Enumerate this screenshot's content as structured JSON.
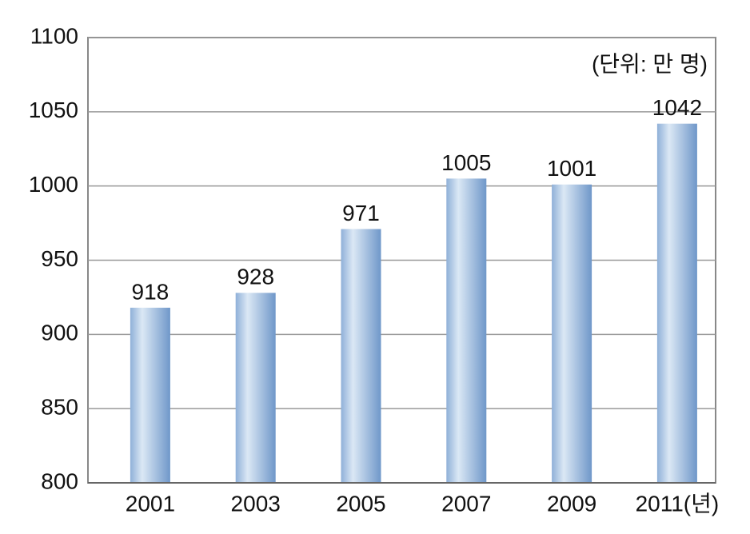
{
  "chart_data": {
    "type": "bar",
    "annotation": "(단위: 만 명)",
    "categories": [
      "2001",
      "2003",
      "2005",
      "2007",
      "2009",
      "2011(년)"
    ],
    "values": [
      918,
      928,
      971,
      1005,
      1001,
      1042
    ],
    "color": "#7fa3cf",
    "ylim": [
      800,
      1100
    ],
    "yticks": [
      800,
      850,
      900,
      950,
      1000,
      1050,
      1100
    ],
    "grid": true
  }
}
